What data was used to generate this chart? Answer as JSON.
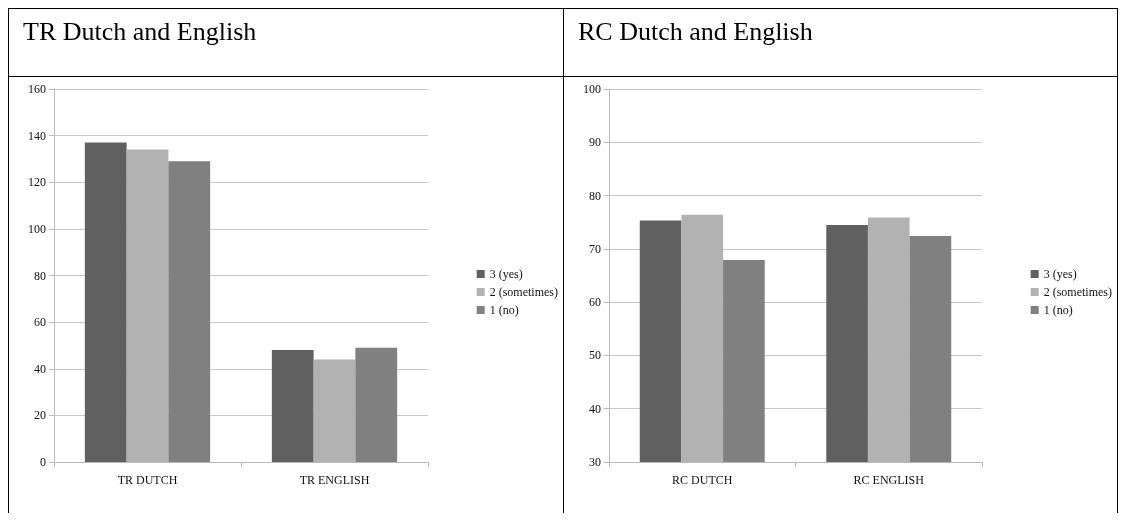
{
  "chart_data": [
    {
      "type": "bar",
      "title": "TR Dutch and English",
      "categories": [
        "TR DUTCH",
        "TR ENGLISH"
      ],
      "series": [
        {
          "name": "3 (yes)",
          "color": "#606060",
          "values": [
            137,
            48
          ]
        },
        {
          "name": "2 (sometimes)",
          "color": "#b2b2b2",
          "values": [
            134,
            44
          ]
        },
        {
          "name": "1 (no)",
          "color": "#808080",
          "values": [
            129,
            49
          ]
        }
      ],
      "ylim": [
        0,
        160
      ],
      "yticks": [
        0,
        20,
        40,
        60,
        80,
        100,
        120,
        140,
        160
      ],
      "grid": "y",
      "legend": "right"
    },
    {
      "type": "bar",
      "title": "RC Dutch and English",
      "categories": [
        "RC DUTCH",
        "RC ENGLISH"
      ],
      "series": [
        {
          "name": "3 (yes)",
          "color": "#606060",
          "values": [
            75.3,
            74.5
          ]
        },
        {
          "name": "2 (sometimes)",
          "color": "#b2b2b2",
          "values": [
            76.4,
            75.9
          ]
        },
        {
          "name": "1 (no)",
          "color": "#808080",
          "values": [
            67.9,
            72.4
          ]
        }
      ],
      "ylim": [
        30,
        100
      ],
      "yticks": [
        30,
        40,
        50,
        60,
        70,
        80,
        90,
        100
      ],
      "grid": "y",
      "legend": "right"
    }
  ]
}
